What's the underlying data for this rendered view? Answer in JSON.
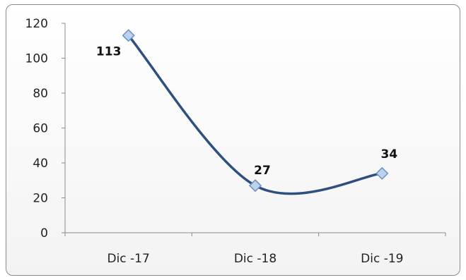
{
  "chart_data": {
    "type": "line",
    "categories": [
      "Dic -17",
      "Dic -18",
      "Dic -19"
    ],
    "series": [
      {
        "values": [
          113,
          27,
          34
        ]
      }
    ],
    "data_labels": [
      "113",
      "27",
      "34"
    ],
    "ylim": [
      0,
      120
    ],
    "yticks": [
      0,
      20,
      40,
      60,
      80,
      100,
      120
    ],
    "ytick_labels": [
      "0",
      "20",
      "40",
      "60",
      "80",
      "100",
      "120"
    ],
    "smooth": true,
    "grid": false,
    "marker": "diamond",
    "colors": {
      "line": "#2f4f7f",
      "marker_fill": "#bcd3f0",
      "marker_stroke": "#6f8fbf",
      "axis": "#8c8c8c"
    }
  }
}
